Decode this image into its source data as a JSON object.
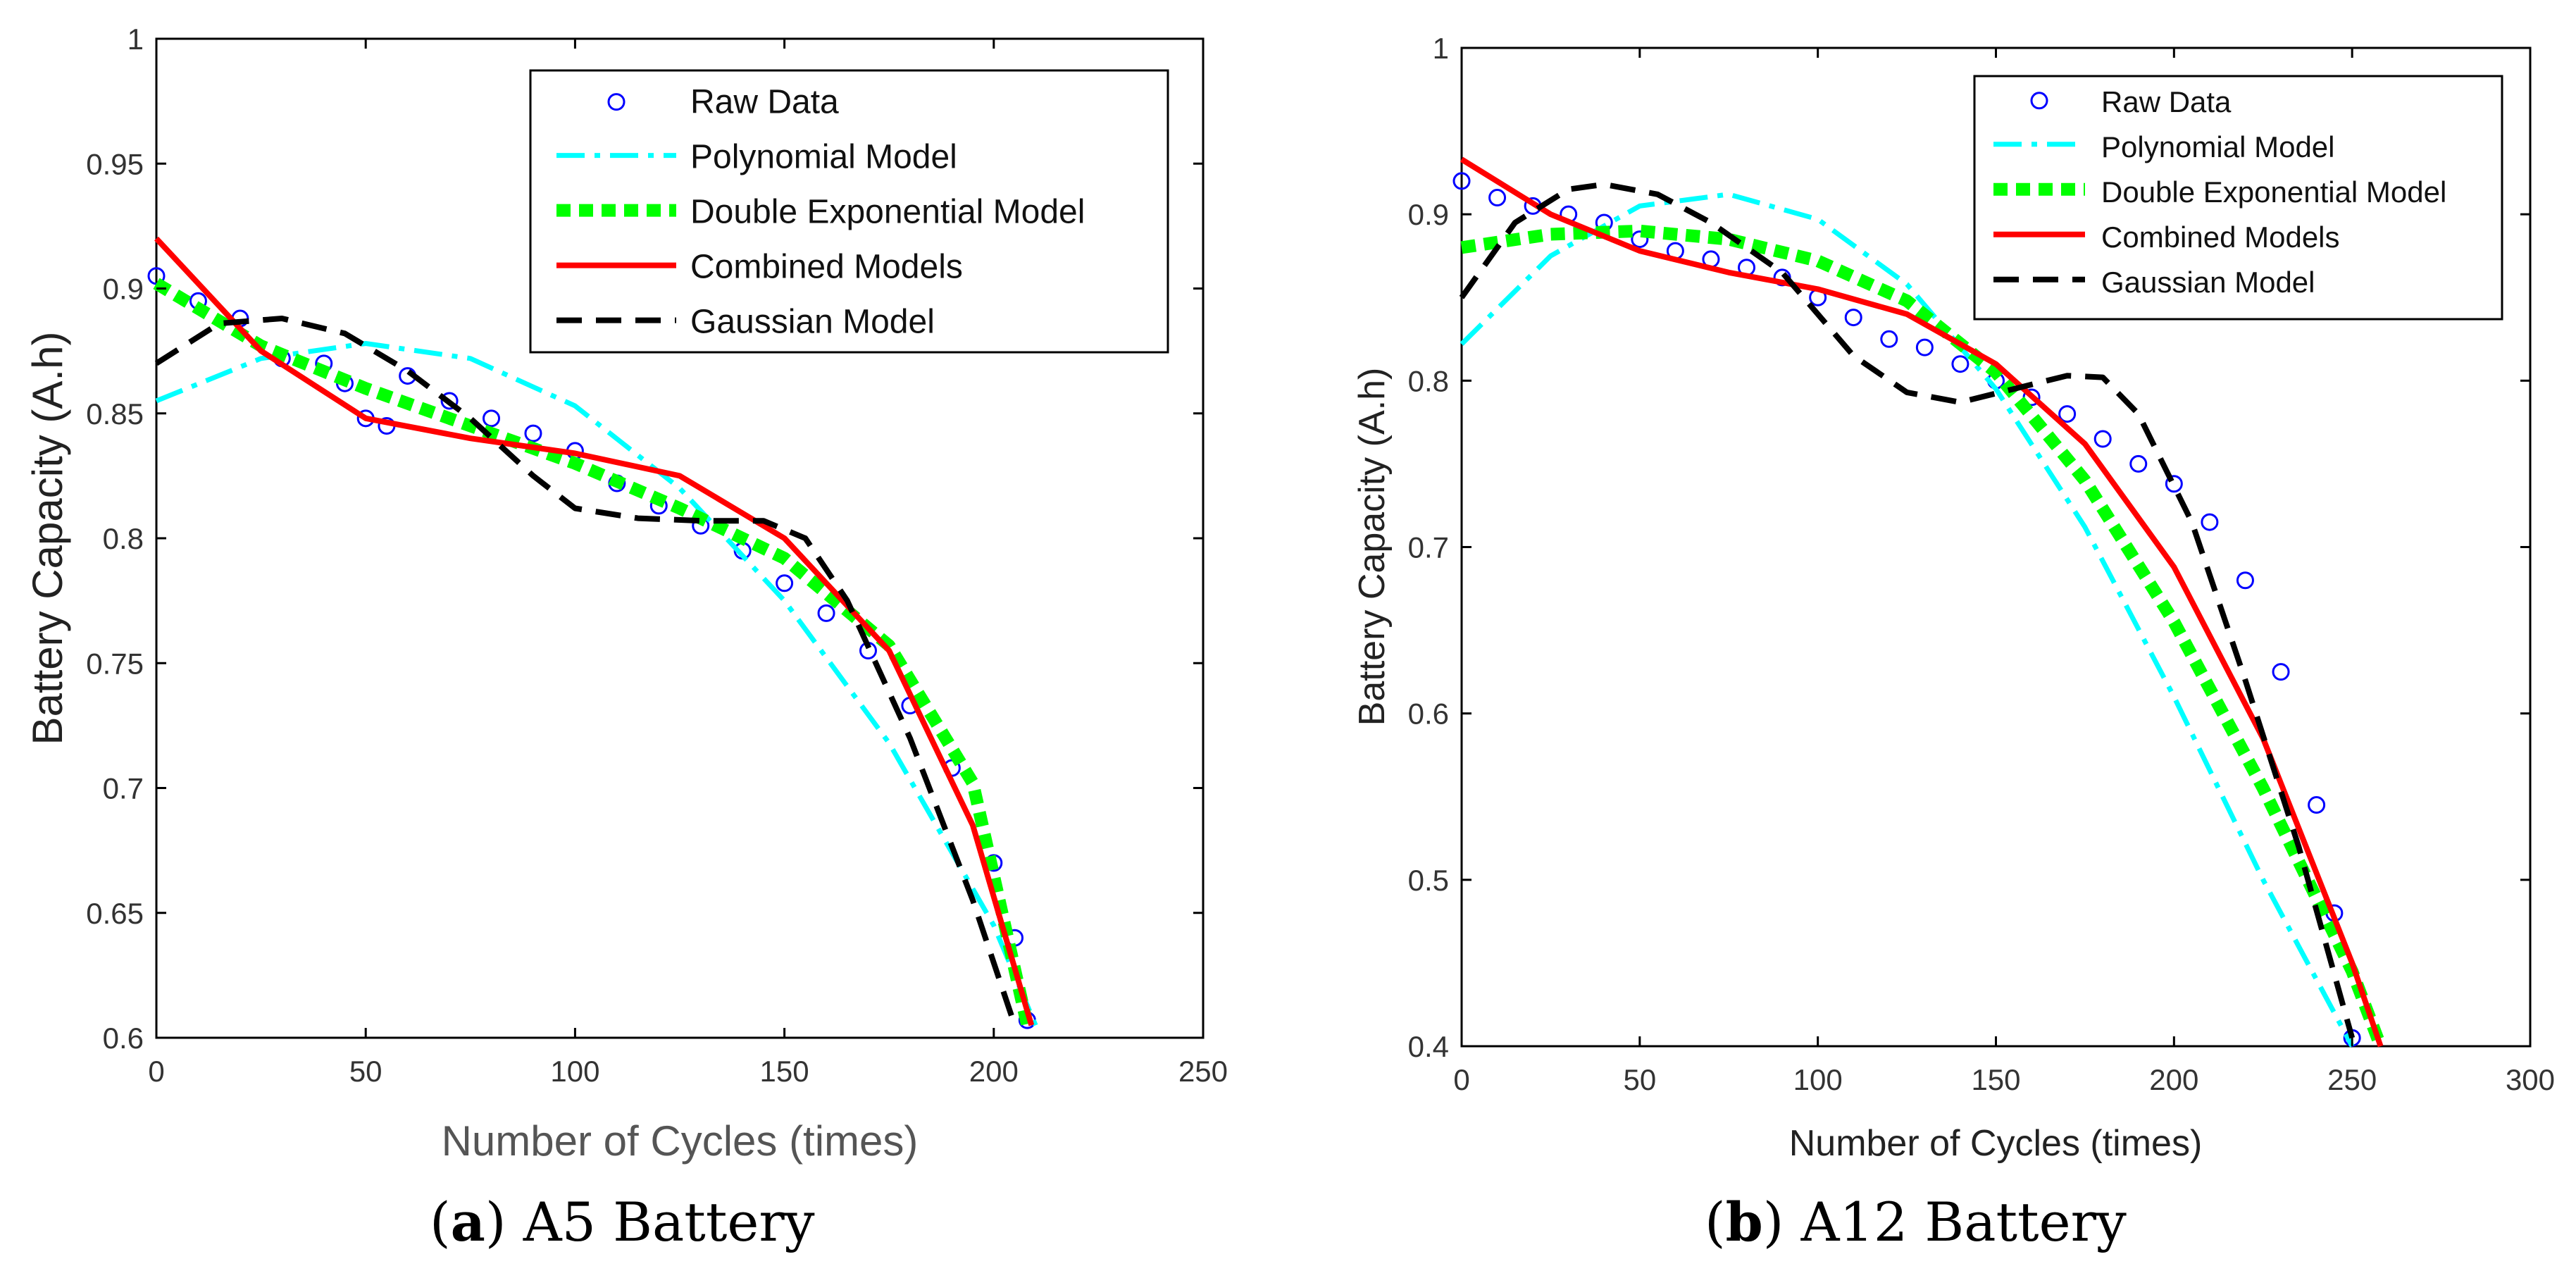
{
  "colors": {
    "raw": "#0000ff",
    "polynomial": "#00ffff",
    "double_exponential": "#00ff00",
    "combined": "#ff0000",
    "gaussian": "#000000",
    "axis": "#000000"
  },
  "captions": [
    {
      "letter": "a",
      "text": "A5 Battery"
    },
    {
      "letter": "b",
      "text": "A12 Battery"
    }
  ],
  "chart_data": [
    {
      "type": "line",
      "xlabel": "Number of Cycles (times)",
      "ylabel": "Battery Capacity (A.h)",
      "xlim": [
        0,
        250
      ],
      "ylim": [
        0.6,
        1
      ],
      "xticks": [
        0,
        50,
        100,
        150,
        200,
        250
      ],
      "yticks": [
        0.6,
        0.65,
        0.7,
        0.75,
        0.8,
        0.85,
        0.9,
        0.95,
        1
      ],
      "ytick_labels": [
        "0.6",
        "0.65",
        "0.7",
        "0.75",
        "0.8",
        "0.85",
        "0.9",
        "0.95",
        "1"
      ],
      "grid": false,
      "legend_position": "top-right",
      "series": [
        {
          "name": "Raw Data",
          "style": "circle-markers",
          "x": [
            0,
            10,
            20,
            30,
            40,
            45,
            50,
            55,
            60,
            70,
            80,
            90,
            100,
            110,
            120,
            130,
            140,
            150,
            160,
            170,
            180,
            190,
            200,
            205,
            208
          ],
          "y": [
            0.905,
            0.895,
            0.888,
            0.872,
            0.87,
            0.862,
            0.848,
            0.845,
            0.865,
            0.855,
            0.848,
            0.842,
            0.835,
            0.822,
            0.813,
            0.805,
            0.795,
            0.782,
            0.77,
            0.755,
            0.733,
            0.708,
            0.67,
            0.64,
            0.607
          ]
        },
        {
          "name": "Polynomial Model",
          "style": "dash-dot",
          "x": [
            0,
            25,
            50,
            75,
            100,
            125,
            150,
            175,
            200,
            210
          ],
          "y": [
            0.855,
            0.872,
            0.878,
            0.872,
            0.853,
            0.82,
            0.775,
            0.718,
            0.645,
            0.605
          ]
        },
        {
          "name": "Double Exponential Model",
          "style": "dotted-thick",
          "x": [
            0,
            25,
            50,
            75,
            100,
            125,
            150,
            175,
            195,
            208
          ],
          "y": [
            0.902,
            0.877,
            0.86,
            0.845,
            0.83,
            0.812,
            0.792,
            0.757,
            0.702,
            0.605
          ]
        },
        {
          "name": "Combined Models",
          "style": "solid",
          "x": [
            0,
            25,
            50,
            75,
            100,
            125,
            150,
            175,
            195,
            209
          ],
          "y": [
            0.92,
            0.875,
            0.848,
            0.84,
            0.834,
            0.825,
            0.8,
            0.755,
            0.685,
            0.605
          ]
        },
        {
          "name": "Gaussian Model",
          "style": "dashed",
          "x": [
            0,
            15,
            30,
            45,
            60,
            75,
            90,
            100,
            115,
            130,
            145,
            155,
            165,
            180,
            195,
            205
          ],
          "y": [
            0.87,
            0.886,
            0.888,
            0.882,
            0.867,
            0.848,
            0.825,
            0.812,
            0.808,
            0.807,
            0.807,
            0.8,
            0.775,
            0.72,
            0.655,
            0.605
          ]
        }
      ]
    },
    {
      "type": "line",
      "xlabel": "Number of Cycles (times)",
      "ylabel": "Battery Capacity (A.h)",
      "xlim": [
        0,
        300
      ],
      "ylim": [
        0.4,
        1
      ],
      "xticks": [
        0,
        50,
        100,
        150,
        200,
        250,
        300
      ],
      "yticks": [
        0.4,
        0.5,
        0.6,
        0.7,
        0.8,
        0.9,
        1
      ],
      "ytick_labels": [
        "0.4",
        "0.5",
        "0.6",
        "0.7",
        "0.8",
        "0.9",
        "1"
      ],
      "grid": false,
      "legend_position": "top-right",
      "series": [
        {
          "name": "Raw Data",
          "style": "circle-markers",
          "x": [
            0,
            10,
            20,
            30,
            40,
            50,
            60,
            70,
            80,
            90,
            100,
            110,
            120,
            130,
            140,
            150,
            160,
            170,
            180,
            190,
            200,
            210,
            220,
            230,
            240,
            245,
            250
          ],
          "y": [
            0.92,
            0.91,
            0.905,
            0.9,
            0.895,
            0.885,
            0.878,
            0.873,
            0.868,
            0.862,
            0.85,
            0.838,
            0.825,
            0.82,
            0.81,
            0.8,
            0.79,
            0.78,
            0.765,
            0.75,
            0.738,
            0.715,
            0.68,
            0.625,
            0.545,
            0.48,
            0.405
          ]
        },
        {
          "name": "Polynomial Model",
          "style": "dash-dot",
          "x": [
            0,
            25,
            50,
            75,
            100,
            125,
            150,
            175,
            200,
            225,
            250
          ],
          "y": [
            0.822,
            0.875,
            0.905,
            0.912,
            0.897,
            0.858,
            0.795,
            0.712,
            0.61,
            0.5,
            0.4
          ]
        },
        {
          "name": "Double Exponential Model",
          "style": "dotted-thick",
          "x": [
            0,
            25,
            50,
            75,
            100,
            125,
            150,
            175,
            200,
            225,
            250,
            258
          ],
          "y": [
            0.88,
            0.888,
            0.89,
            0.885,
            0.872,
            0.848,
            0.805,
            0.74,
            0.655,
            0.555,
            0.445,
            0.4
          ]
        },
        {
          "name": "Combined Models",
          "style": "solid",
          "x": [
            0,
            25,
            50,
            75,
            100,
            125,
            150,
            175,
            200,
            225,
            250,
            258
          ],
          "y": [
            0.933,
            0.9,
            0.878,
            0.865,
            0.855,
            0.84,
            0.81,
            0.762,
            0.688,
            0.585,
            0.45,
            0.4
          ]
        },
        {
          "name": "Gaussian Model",
          "style": "dashed",
          "x": [
            0,
            15,
            30,
            40,
            55,
            70,
            90,
            110,
            125,
            140,
            155,
            170,
            180,
            190,
            205,
            220,
            235,
            250
          ],
          "y": [
            0.85,
            0.895,
            0.915,
            0.918,
            0.912,
            0.895,
            0.865,
            0.815,
            0.793,
            0.787,
            0.795,
            0.803,
            0.802,
            0.78,
            0.715,
            0.62,
            0.52,
            0.405
          ]
        }
      ]
    }
  ]
}
